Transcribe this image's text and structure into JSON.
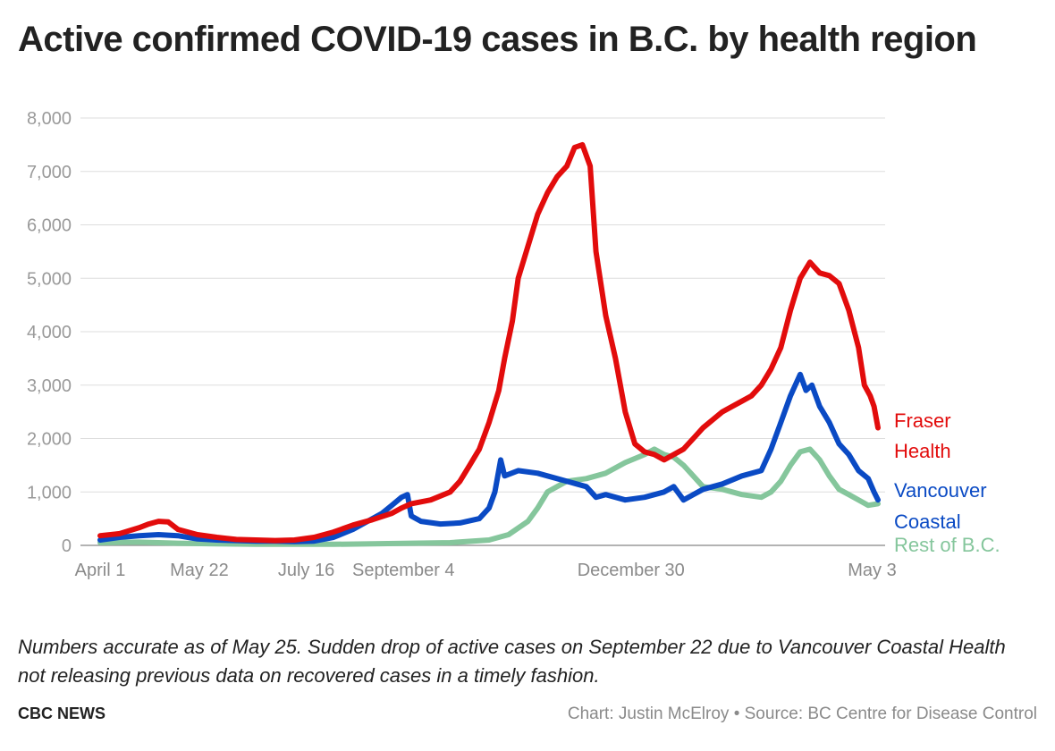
{
  "title": "Active confirmed COVID-19 cases in B.C. by health region",
  "note": "Numbers accurate as of May 25. Sudden drop of active cases on September 22 due to Vancouver Coastal Health not releasing previous data on recovered cases in a timely fashion.",
  "brand": "CBC NEWS",
  "credit": "Chart: Justin McElroy • Source: BC Centre for Disease Control",
  "chart_data": {
    "type": "line",
    "title": "Active confirmed COVID-19 cases in B.C. by health region",
    "xlabel": "",
    "ylabel": "",
    "x_ticks": [
      "April 1",
      "May 22",
      "July 16",
      "September 4",
      "December 30",
      "May 3"
    ],
    "x_tick_index": [
      0,
      51,
      106,
      156,
      273,
      397
    ],
    "xlim_index": [
      0,
      400
    ],
    "ylim": [
      0,
      8000
    ],
    "y_ticks": [
      "0",
      "1,000",
      "2,000",
      "3,000",
      "4,000",
      "5,000",
      "6,000",
      "7,000",
      "8,000"
    ],
    "y_tick_values": [
      0,
      1000,
      2000,
      3000,
      4000,
      5000,
      6000,
      7000,
      8000
    ],
    "grid": true,
    "legend": "direct labels at right end of lines",
    "series": [
      {
        "name": "Fraser Health",
        "label_lines": [
          "Fraser",
          "Health"
        ],
        "color": "#e20c0c",
        "points": [
          [
            0,
            180
          ],
          [
            10,
            220
          ],
          [
            20,
            330
          ],
          [
            25,
            400
          ],
          [
            30,
            450
          ],
          [
            35,
            440
          ],
          [
            40,
            300
          ],
          [
            50,
            200
          ],
          [
            60,
            150
          ],
          [
            70,
            110
          ],
          [
            80,
            100
          ],
          [
            90,
            90
          ],
          [
            100,
            100
          ],
          [
            110,
            150
          ],
          [
            120,
            250
          ],
          [
            130,
            380
          ],
          [
            140,
            480
          ],
          [
            150,
            600
          ],
          [
            155,
            700
          ],
          [
            160,
            780
          ],
          [
            170,
            850
          ],
          [
            180,
            1000
          ],
          [
            185,
            1200
          ],
          [
            190,
            1500
          ],
          [
            195,
            1800
          ],
          [
            200,
            2300
          ],
          [
            205,
            2900
          ],
          [
            208,
            3500
          ],
          [
            212,
            4200
          ],
          [
            215,
            5000
          ],
          [
            220,
            5600
          ],
          [
            225,
            6200
          ],
          [
            230,
            6600
          ],
          [
            235,
            6900
          ],
          [
            240,
            7100
          ],
          [
            244,
            7450
          ],
          [
            248,
            7500
          ],
          [
            252,
            7100
          ],
          [
            255,
            5500
          ],
          [
            260,
            4300
          ],
          [
            265,
            3500
          ],
          [
            270,
            2500
          ],
          [
            275,
            1900
          ],
          [
            280,
            1750
          ],
          [
            285,
            1700
          ],
          [
            290,
            1600
          ],
          [
            295,
            1700
          ],
          [
            300,
            1800
          ],
          [
            305,
            2000
          ],
          [
            310,
            2200
          ],
          [
            315,
            2350
          ],
          [
            320,
            2500
          ],
          [
            325,
            2600
          ],
          [
            330,
            2700
          ],
          [
            335,
            2800
          ],
          [
            340,
            3000
          ],
          [
            345,
            3300
          ],
          [
            350,
            3700
          ],
          [
            355,
            4400
          ],
          [
            360,
            5000
          ],
          [
            365,
            5300
          ],
          [
            370,
            5100
          ],
          [
            375,
            5050
          ],
          [
            380,
            4900
          ],
          [
            385,
            4400
          ],
          [
            390,
            3700
          ],
          [
            393,
            3000
          ],
          [
            396,
            2800
          ],
          [
            398,
            2600
          ],
          [
            400,
            2200
          ]
        ]
      },
      {
        "name": "Vancouver Coastal",
        "label_lines": [
          "Vancouver",
          "Coastal"
        ],
        "color": "#0a4ac4",
        "points": [
          [
            0,
            100
          ],
          [
            10,
            150
          ],
          [
            20,
            180
          ],
          [
            30,
            200
          ],
          [
            40,
            180
          ],
          [
            50,
            120
          ],
          [
            60,
            100
          ],
          [
            70,
            90
          ],
          [
            80,
            80
          ],
          [
            90,
            80
          ],
          [
            100,
            70
          ],
          [
            110,
            80
          ],
          [
            120,
            150
          ],
          [
            130,
            300
          ],
          [
            140,
            500
          ],
          [
            145,
            600
          ],
          [
            150,
            750
          ],
          [
            155,
            900
          ],
          [
            158,
            950
          ],
          [
            160,
            550
          ],
          [
            165,
            450
          ],
          [
            175,
            400
          ],
          [
            185,
            420
          ],
          [
            195,
            500
          ],
          [
            200,
            700
          ],
          [
            203,
            1000
          ],
          [
            206,
            1600
          ],
          [
            208,
            1300
          ],
          [
            215,
            1400
          ],
          [
            225,
            1350
          ],
          [
            235,
            1250
          ],
          [
            245,
            1150
          ],
          [
            250,
            1100
          ],
          [
            255,
            900
          ],
          [
            260,
            950
          ],
          [
            270,
            850
          ],
          [
            280,
            900
          ],
          [
            290,
            1000
          ],
          [
            295,
            1100
          ],
          [
            300,
            850
          ],
          [
            305,
            950
          ],
          [
            310,
            1050
          ],
          [
            320,
            1150
          ],
          [
            330,
            1300
          ],
          [
            340,
            1400
          ],
          [
            345,
            1800
          ],
          [
            350,
            2300
          ],
          [
            355,
            2800
          ],
          [
            360,
            3200
          ],
          [
            363,
            2900
          ],
          [
            366,
            3000
          ],
          [
            370,
            2600
          ],
          [
            375,
            2300
          ],
          [
            380,
            1900
          ],
          [
            385,
            1700
          ],
          [
            390,
            1400
          ],
          [
            395,
            1250
          ],
          [
            398,
            1000
          ],
          [
            400,
            850
          ]
        ]
      },
      {
        "name": "Rest of B.C.",
        "label_lines": [
          "Rest of B.C."
        ],
        "color": "#85c69c",
        "points": [
          [
            0,
            50
          ],
          [
            20,
            60
          ],
          [
            40,
            40
          ],
          [
            60,
            30
          ],
          [
            80,
            20
          ],
          [
            100,
            20
          ],
          [
            120,
            20
          ],
          [
            140,
            30
          ],
          [
            160,
            40
          ],
          [
            180,
            50
          ],
          [
            200,
            100
          ],
          [
            210,
            200
          ],
          [
            220,
            450
          ],
          [
            225,
            700
          ],
          [
            230,
            1000
          ],
          [
            240,
            1200
          ],
          [
            250,
            1250
          ],
          [
            260,
            1350
          ],
          [
            270,
            1550
          ],
          [
            280,
            1700
          ],
          [
            285,
            1800
          ],
          [
            290,
            1700
          ],
          [
            295,
            1650
          ],
          [
            300,
            1500
          ],
          [
            305,
            1300
          ],
          [
            310,
            1100
          ],
          [
            320,
            1050
          ],
          [
            330,
            950
          ],
          [
            340,
            900
          ],
          [
            345,
            1000
          ],
          [
            350,
            1200
          ],
          [
            355,
            1500
          ],
          [
            360,
            1750
          ],
          [
            365,
            1800
          ],
          [
            370,
            1600
          ],
          [
            375,
            1300
          ],
          [
            380,
            1050
          ],
          [
            385,
            950
          ],
          [
            390,
            850
          ],
          [
            395,
            750
          ],
          [
            400,
            780
          ]
        ]
      }
    ]
  }
}
